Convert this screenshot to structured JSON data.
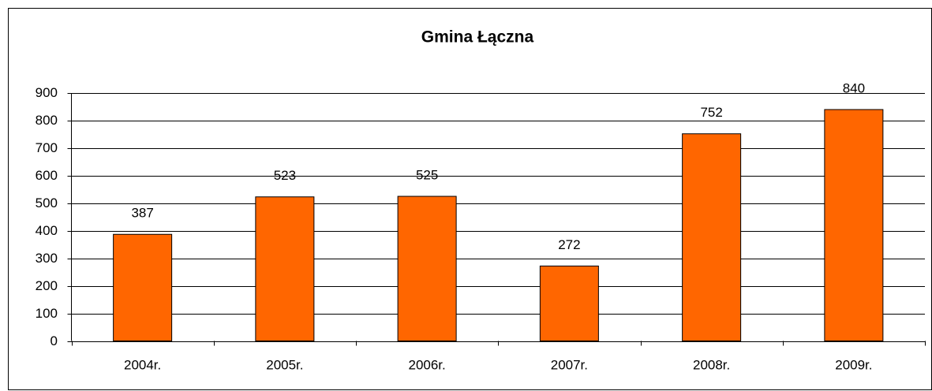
{
  "chart_data": {
    "type": "bar",
    "title": "Gmina Łączna",
    "categories": [
      "2004r.",
      "2005r.",
      "2006r.",
      "2007r.",
      "2008r.",
      "2009r."
    ],
    "values": [
      387,
      523,
      525,
      272,
      752,
      840
    ],
    "color": "#ff6600",
    "ylim": [
      0,
      900
    ],
    "yticks": [
      0,
      100,
      200,
      300,
      400,
      500,
      600,
      700,
      800,
      900
    ],
    "grid": true
  }
}
